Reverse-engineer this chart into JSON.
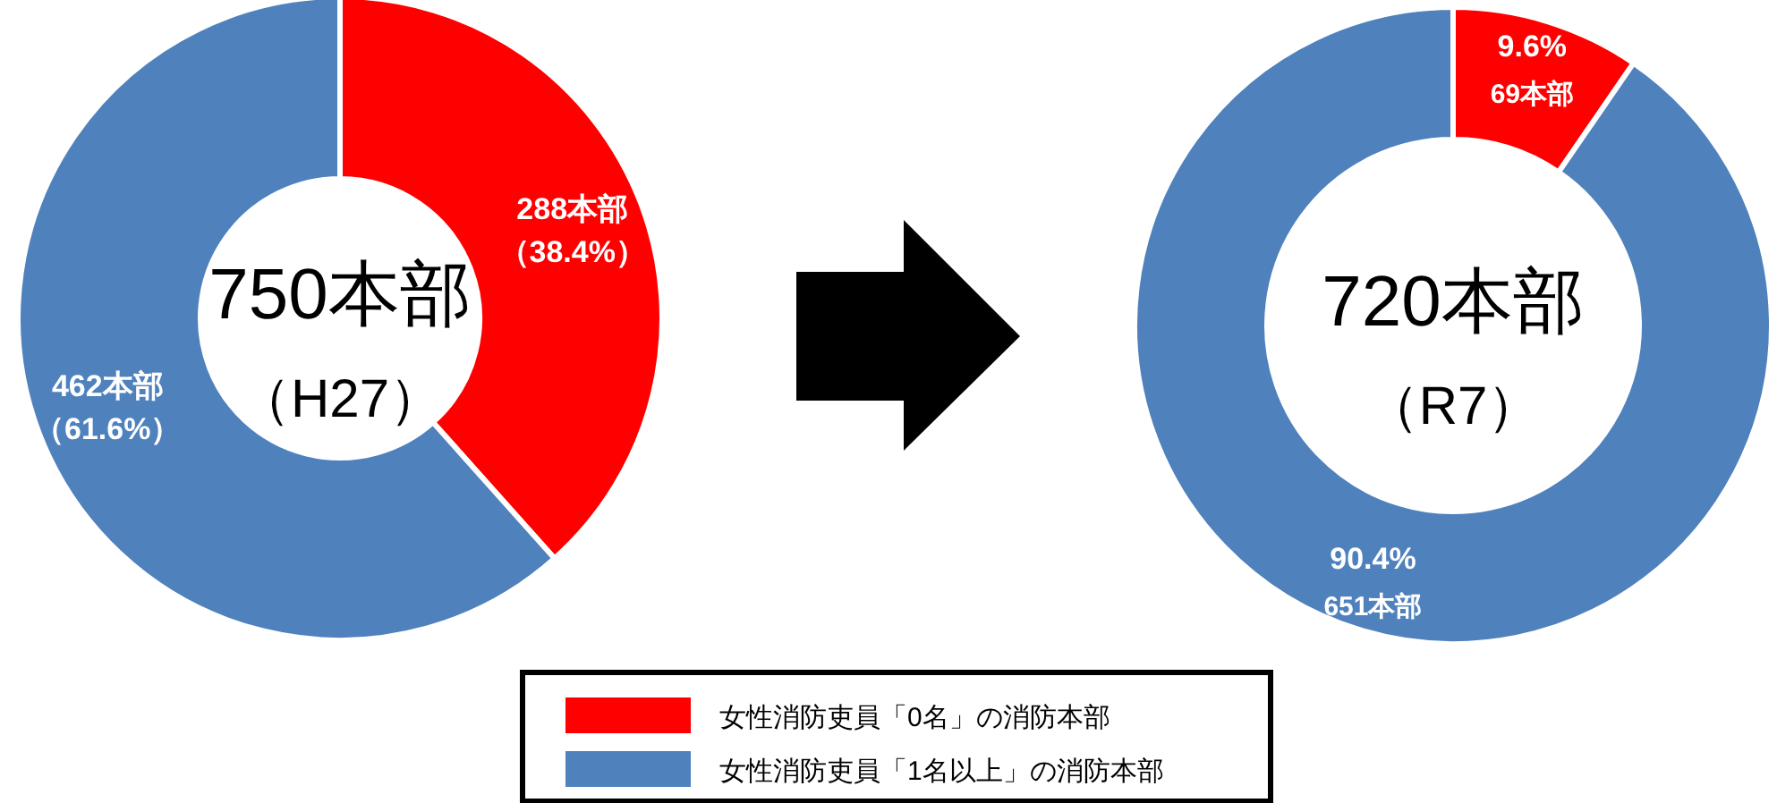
{
  "chart_data": [
    {
      "type": "donut",
      "categories": [
        "女性消防吏員「0名」の消防本部",
        "女性消防吏員「1名以上」の消防本部"
      ],
      "values": [
        288,
        462
      ],
      "colors": [
        "#ff0000",
        "#4f81bd"
      ],
      "value_labels": [
        "288本部",
        "462本部"
      ],
      "annotations": [
        "750本部",
        "（H27）",
        "（38.4%）",
        "（61.6%）"
      ],
      "legend": "bottom"
    },
    {
      "type": "donut",
      "categories": [
        null,
        null
      ],
      "values": [
        69,
        651
      ],
      "colors": [
        "#ff0000",
        "#4f81bd"
      ],
      "value_labels": [
        "69本部",
        "651本部"
      ],
      "annotations": [
        "720本部",
        "（R7）",
        "9.6%",
        "90.4%"
      ]
    }
  ]
}
